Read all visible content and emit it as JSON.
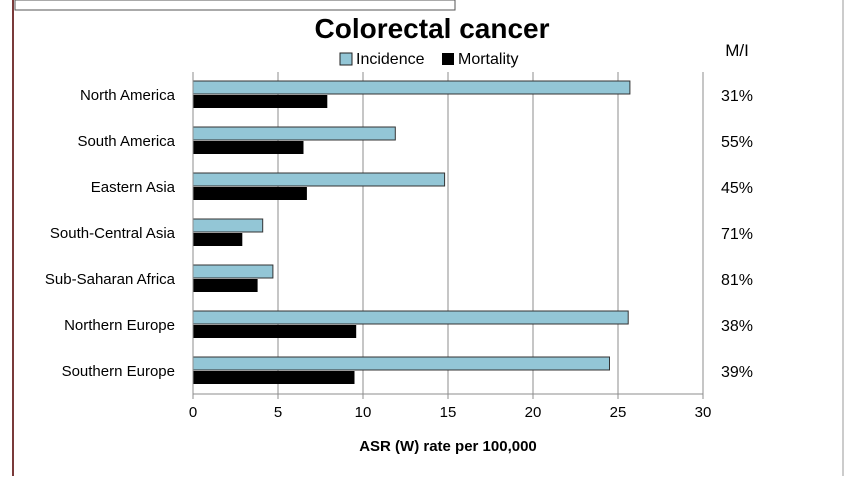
{
  "chart_data": {
    "type": "bar",
    "orientation": "horizontal",
    "title": "Colorectal cancer",
    "xlabel": "ASR (W) rate per 100,000",
    "ylabel": "",
    "xlim": [
      0,
      30
    ],
    "xticks": [
      0,
      5,
      10,
      15,
      20,
      25,
      30
    ],
    "grid": true,
    "legend_position": "top",
    "categories": [
      "North America",
      "South America",
      "Eastern Asia",
      "South-Central Asia",
      "Sub-Saharan Africa",
      "Northern Europe",
      "Southern Europe"
    ],
    "series": [
      {
        "name": "Incidence",
        "color": "#93c6d6",
        "values": [
          25.7,
          11.9,
          14.8,
          4.1,
          4.7,
          25.6,
          24.5
        ]
      },
      {
        "name": "Mortality",
        "color": "#000000",
        "values": [
          7.9,
          6.5,
          6.7,
          2.9,
          3.8,
          9.6,
          9.5
        ]
      }
    ],
    "side_column_header": "M/I",
    "side_values": [
      "31%",
      "55%",
      "45%",
      "71%",
      "81%",
      "38%",
      "39%"
    ]
  }
}
